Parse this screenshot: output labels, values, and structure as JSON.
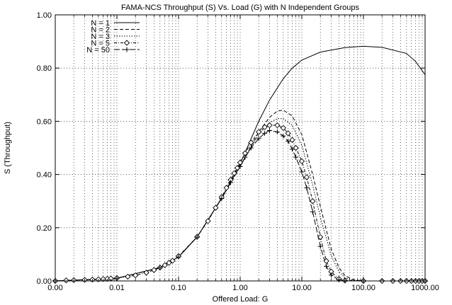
{
  "chart_data": {
    "type": "line",
    "title": "FAMA-NCS Throughput (S) Vs. Load (G) with N Independent Groups",
    "xlabel": "Offered Load: G",
    "ylabel": "S (Throughput)",
    "x_scale": "log",
    "xlim": [
      0.001,
      1000
    ],
    "ylim": [
      0,
      1.0
    ],
    "grid": true,
    "legend_position": "top-left",
    "x_ticks": [
      {
        "value": 0.001,
        "label": "0.00"
      },
      {
        "value": 0.01,
        "label": "0.01"
      },
      {
        "value": 0.1,
        "label": "0.10"
      },
      {
        "value": 1,
        "label": "1.00"
      },
      {
        "value": 10,
        "label": "10.00"
      },
      {
        "value": 100,
        "label": "100.00"
      },
      {
        "value": 1000,
        "label": "1000.00"
      }
    ],
    "y_ticks": [
      {
        "value": 0.0,
        "label": "0.00"
      },
      {
        "value": 0.2,
        "label": "0.20"
      },
      {
        "value": 0.4,
        "label": "0.40"
      },
      {
        "value": 0.6,
        "label": "0.60"
      },
      {
        "value": 0.8,
        "label": "0.80"
      },
      {
        "value": 1.0,
        "label": "1.00"
      }
    ],
    "series": [
      {
        "name": "N = 1",
        "line": "solid",
        "marker": "none",
        "x": [
          0.001,
          0.01,
          0.05,
          0.1,
          0.2,
          0.5,
          1,
          2,
          3,
          5,
          7,
          10,
          20,
          50,
          100,
          200,
          500,
          700,
          1000
        ],
        "y": [
          0.0,
          0.01,
          0.05,
          0.09,
          0.165,
          0.31,
          0.44,
          0.6,
          0.68,
          0.76,
          0.8,
          0.83,
          0.86,
          0.877,
          0.882,
          0.878,
          0.855,
          0.825,
          0.775
        ]
      },
      {
        "name": "N = 2",
        "line": "dashed",
        "marker": "none",
        "x": [
          0.001,
          0.01,
          0.05,
          0.1,
          0.2,
          0.5,
          1,
          2,
          3,
          4,
          5,
          7,
          10,
          15,
          20,
          30,
          40,
          50,
          70,
          100,
          300,
          1000
        ],
        "y": [
          0.0,
          0.01,
          0.05,
          0.09,
          0.165,
          0.31,
          0.43,
          0.56,
          0.615,
          0.638,
          0.642,
          0.62,
          0.55,
          0.4,
          0.28,
          0.12,
          0.05,
          0.02,
          0.004,
          0.0,
          0.0,
          0.0
        ]
      },
      {
        "name": "N = 3",
        "line": "dotted",
        "marker": "none",
        "x": [
          0.001,
          0.01,
          0.05,
          0.1,
          0.2,
          0.5,
          1,
          2,
          3,
          4,
          5,
          7,
          10,
          15,
          20,
          30,
          40,
          50,
          70,
          100,
          300,
          1000
        ],
        "y": [
          0.0,
          0.01,
          0.05,
          0.09,
          0.165,
          0.31,
          0.43,
          0.55,
          0.595,
          0.61,
          0.61,
          0.585,
          0.51,
          0.36,
          0.24,
          0.095,
          0.035,
          0.012,
          0.002,
          0.0,
          0.0,
          0.0
        ]
      },
      {
        "name": "N = 5",
        "line": "dash-dot",
        "marker": "diamond",
        "x": [
          0.001,
          0.0015,
          0.002,
          0.003,
          0.004,
          0.005,
          0.006,
          0.007,
          0.008,
          0.01,
          0.015,
          0.02,
          0.03,
          0.04,
          0.05,
          0.06,
          0.07,
          0.08,
          0.1,
          0.2,
          0.3,
          0.4,
          0.5,
          0.6,
          0.7,
          0.8,
          0.9,
          1,
          1.2,
          1.5,
          2,
          2.5,
          3,
          4,
          5,
          6,
          7,
          8,
          10,
          12,
          15,
          20,
          25,
          30,
          40,
          50,
          100,
          200,
          300,
          400,
          500,
          600,
          700,
          800,
          900,
          1000
        ],
        "y": [
          0.0,
          0.002,
          0.003,
          0.004,
          0.005,
          0.006,
          0.007,
          0.008,
          0.009,
          0.011,
          0.016,
          0.021,
          0.031,
          0.041,
          0.05,
          0.059,
          0.068,
          0.076,
          0.093,
          0.166,
          0.225,
          0.275,
          0.315,
          0.35,
          0.38,
          0.405,
          0.425,
          0.445,
          0.48,
          0.52,
          0.56,
          0.578,
          0.585,
          0.585,
          0.575,
          0.555,
          0.53,
          0.5,
          0.45,
          0.39,
          0.3,
          0.165,
          0.075,
          0.035,
          0.008,
          0.002,
          0.0,
          0.0,
          0.0,
          0.0,
          0.0,
          0.0,
          0.0,
          0.0,
          0.0,
          0.0
        ]
      },
      {
        "name": "N = 50",
        "line": "long-dash",
        "marker": "plus",
        "x": [
          0.001,
          0.01,
          0.05,
          0.1,
          0.2,
          0.5,
          0.7,
          1,
          1.2,
          1.5,
          2,
          2.5,
          3,
          4,
          5,
          6,
          7,
          8,
          10,
          12,
          15,
          20,
          25,
          30,
          40,
          50,
          100,
          1000
        ],
        "y": [
          0.0,
          0.01,
          0.05,
          0.09,
          0.165,
          0.31,
          0.37,
          0.43,
          0.465,
          0.5,
          0.535,
          0.555,
          0.565,
          0.56,
          0.545,
          0.525,
          0.495,
          0.465,
          0.41,
          0.35,
          0.26,
          0.13,
          0.055,
          0.022,
          0.004,
          0.001,
          0.0,
          0.0
        ]
      }
    ]
  }
}
